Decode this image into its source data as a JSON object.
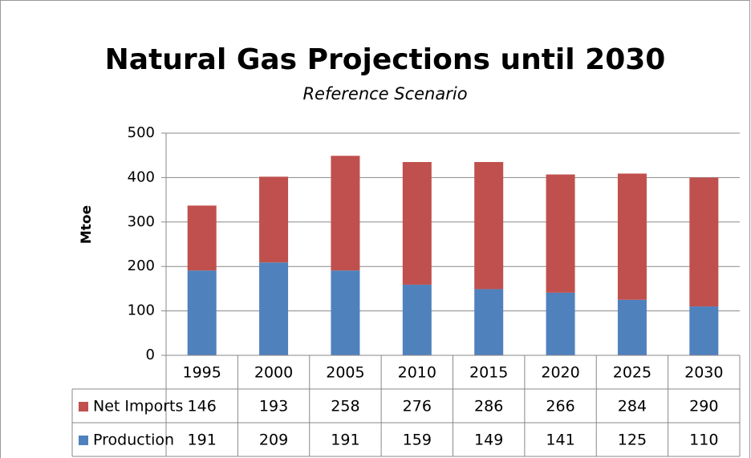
{
  "chart_data": {
    "type": "stacked_bar",
    "title": "Natural Gas Projections until 2030",
    "subtitle": "Reference Scenario",
    "y_label": "Mtoe",
    "categories": [
      "1995",
      "2000",
      "2005",
      "2010",
      "2015",
      "2020",
      "2025",
      "2030"
    ],
    "series": [
      {
        "name": "Net Imports",
        "color": "#c0504d",
        "values": [
          146,
          193,
          258,
          276,
          286,
          266,
          284,
          290
        ]
      },
      {
        "name": "Production",
        "color": "#4f81bd",
        "values": [
          191,
          209,
          191,
          159,
          149,
          141,
          125,
          110
        ]
      }
    ],
    "ylim": [
      0,
      500
    ],
    "yticks": [
      0,
      100,
      200,
      300,
      400,
      500
    ],
    "grid": true
  }
}
